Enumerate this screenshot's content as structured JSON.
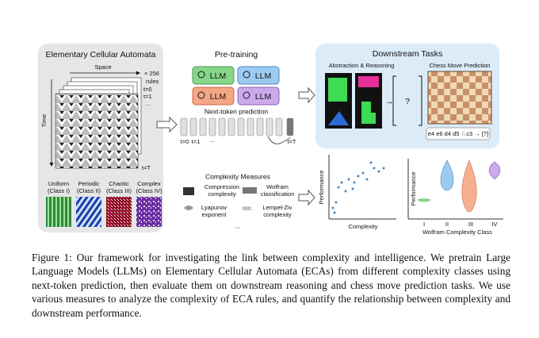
{
  "eca": {
    "title": "Elementary Cellular Automata",
    "space": "Space",
    "time": "Time",
    "rules_count": "× 256",
    "rules": "rules",
    "t0": "t=0",
    "t1": "t=1",
    "dots": "...",
    "tT": "t=T",
    "classes": [
      {
        "name": "Uniform",
        "cls": "(Class I)"
      },
      {
        "name": "Periodic",
        "cls": "(Class II)"
      },
      {
        "name": "Chaotic",
        "cls": "(Class III)"
      },
      {
        "name": "Complex",
        "cls": "(Class IV)"
      }
    ]
  },
  "pretraining": {
    "title": "Pre-training",
    "models": [
      "LLM",
      "LLM",
      "LLM",
      "LLM"
    ],
    "task": "Next-token prediction",
    "t0": "t=0",
    "t1": "t=1",
    "dots": "...",
    "tT": "t=T"
  },
  "complexity": {
    "title": "Complexity Measures",
    "items": [
      [
        "Compression",
        "complexity"
      ],
      [
        "Wolfram",
        "classification"
      ],
      [
        "Lyapunov",
        "exponent"
      ],
      [
        "Lempel-Ziv",
        "complexity"
      ]
    ],
    "more": "..."
  },
  "downstream": {
    "title": "Downstream Tasks",
    "arc": "Abstraction & Reasoning",
    "arc_query": "?",
    "chess": "Chess Move Prediction",
    "moves": "e4 e6 d4 d5 ♘c3 → [?]"
  },
  "scatter": {
    "ylabel": "Performance",
    "xlabel": "Complexity"
  },
  "violin": {
    "ylabel": "Performance",
    "categories": [
      "I",
      "II",
      "III",
      "IV"
    ],
    "xlabel": "Wolfram Complexity Class"
  },
  "caption": "Figure 1: Our framework for investigating the link between complexity and intelligence. We pretrain Large Language Models (LLMs) on Elementary Cellular Automata (ECAs) from different complexity classes using next-token prediction, then evaluate them on downstream reasoning and chess move prediction tasks. We use various measures to analyze the complexity of ECA rules, and quantify the relationship between complexity and downstream performance."
}
